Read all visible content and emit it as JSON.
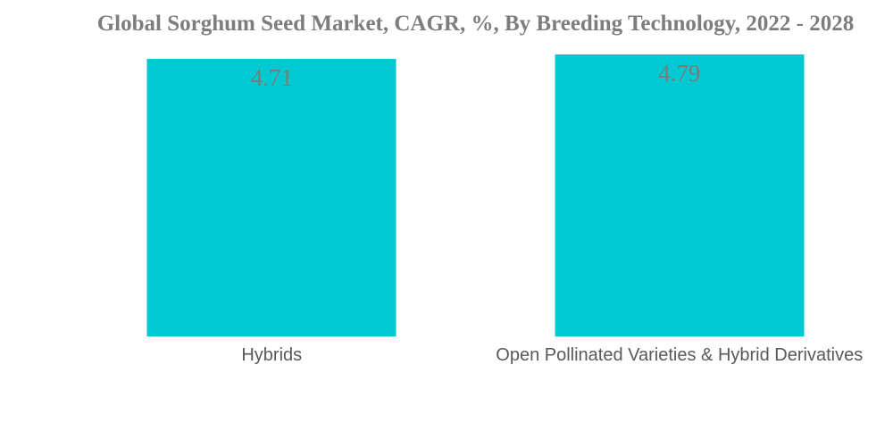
{
  "title": "Global Sorghum Seed Market, CAGR, %, By Breeding Technology, 2022 - 2028",
  "colors": {
    "bar": "#00C9D1",
    "title_text": "#7D7D7D",
    "value_label_text": "#7B7B7B",
    "category_label_text": "#595959",
    "background": "#FFFFFF"
  },
  "chart_data": {
    "type": "bar",
    "title": "Global Sorghum Seed Market, CAGR, %, By Breeding Technology, 2022 - 2028",
    "categories": [
      "Hybrids",
      "Open Pollinated Varieties & Hybrid Derivatives"
    ],
    "values": [
      4.71,
      4.79
    ],
    "value_labels": [
      "4.71",
      "4.79"
    ],
    "series_name": "CAGR %",
    "xlabel": "",
    "ylabel": "",
    "unit": "%",
    "legend": false,
    "grid": false,
    "axes_visible": false,
    "value_label_position": "inside-top",
    "bar_color": "#00C9D1"
  }
}
